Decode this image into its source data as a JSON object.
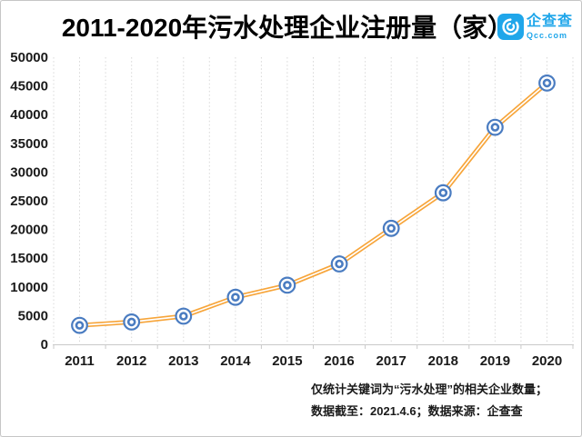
{
  "header": {
    "title": "2011-2020年污水处理企业注册量（家）",
    "logo_name": "企查查",
    "logo_domain": "Qcc.com"
  },
  "chart_data": {
    "type": "line",
    "title": "2011-2020年污水处理企业注册量（家）",
    "categories": [
      "2011",
      "2012",
      "2013",
      "2014",
      "2015",
      "2016",
      "2017",
      "2018",
      "2019",
      "2020"
    ],
    "values": [
      3300,
      3900,
      4900,
      8200,
      10300,
      14000,
      20200,
      26400,
      37800,
      45500
    ],
    "xlabel": "",
    "ylabel": "",
    "ylim": [
      0,
      50000
    ],
    "yticks": [
      0,
      5000,
      10000,
      15000,
      20000,
      25000,
      30000,
      35000,
      40000,
      45000,
      50000
    ],
    "grid": "vertical-dotted",
    "legend": "none",
    "marker_style": "double-ring-circle",
    "line_style": "double-stroke"
  },
  "footer": {
    "line1": "仅统计关键词为“污水处理”的相关企业数量；",
    "line2": "数据截至：2021.4.6；数据来源：企查查"
  },
  "colors": {
    "line_orange": "#F7A53A",
    "marker_blue": "#4A7CC1",
    "grid_gray": "#D8D8D8",
    "axis_gray": "#C9C9C9",
    "text_dark": "#1A1A1A",
    "logo_blue": "#1FA6EA",
    "background": "#FFFFFF"
  }
}
